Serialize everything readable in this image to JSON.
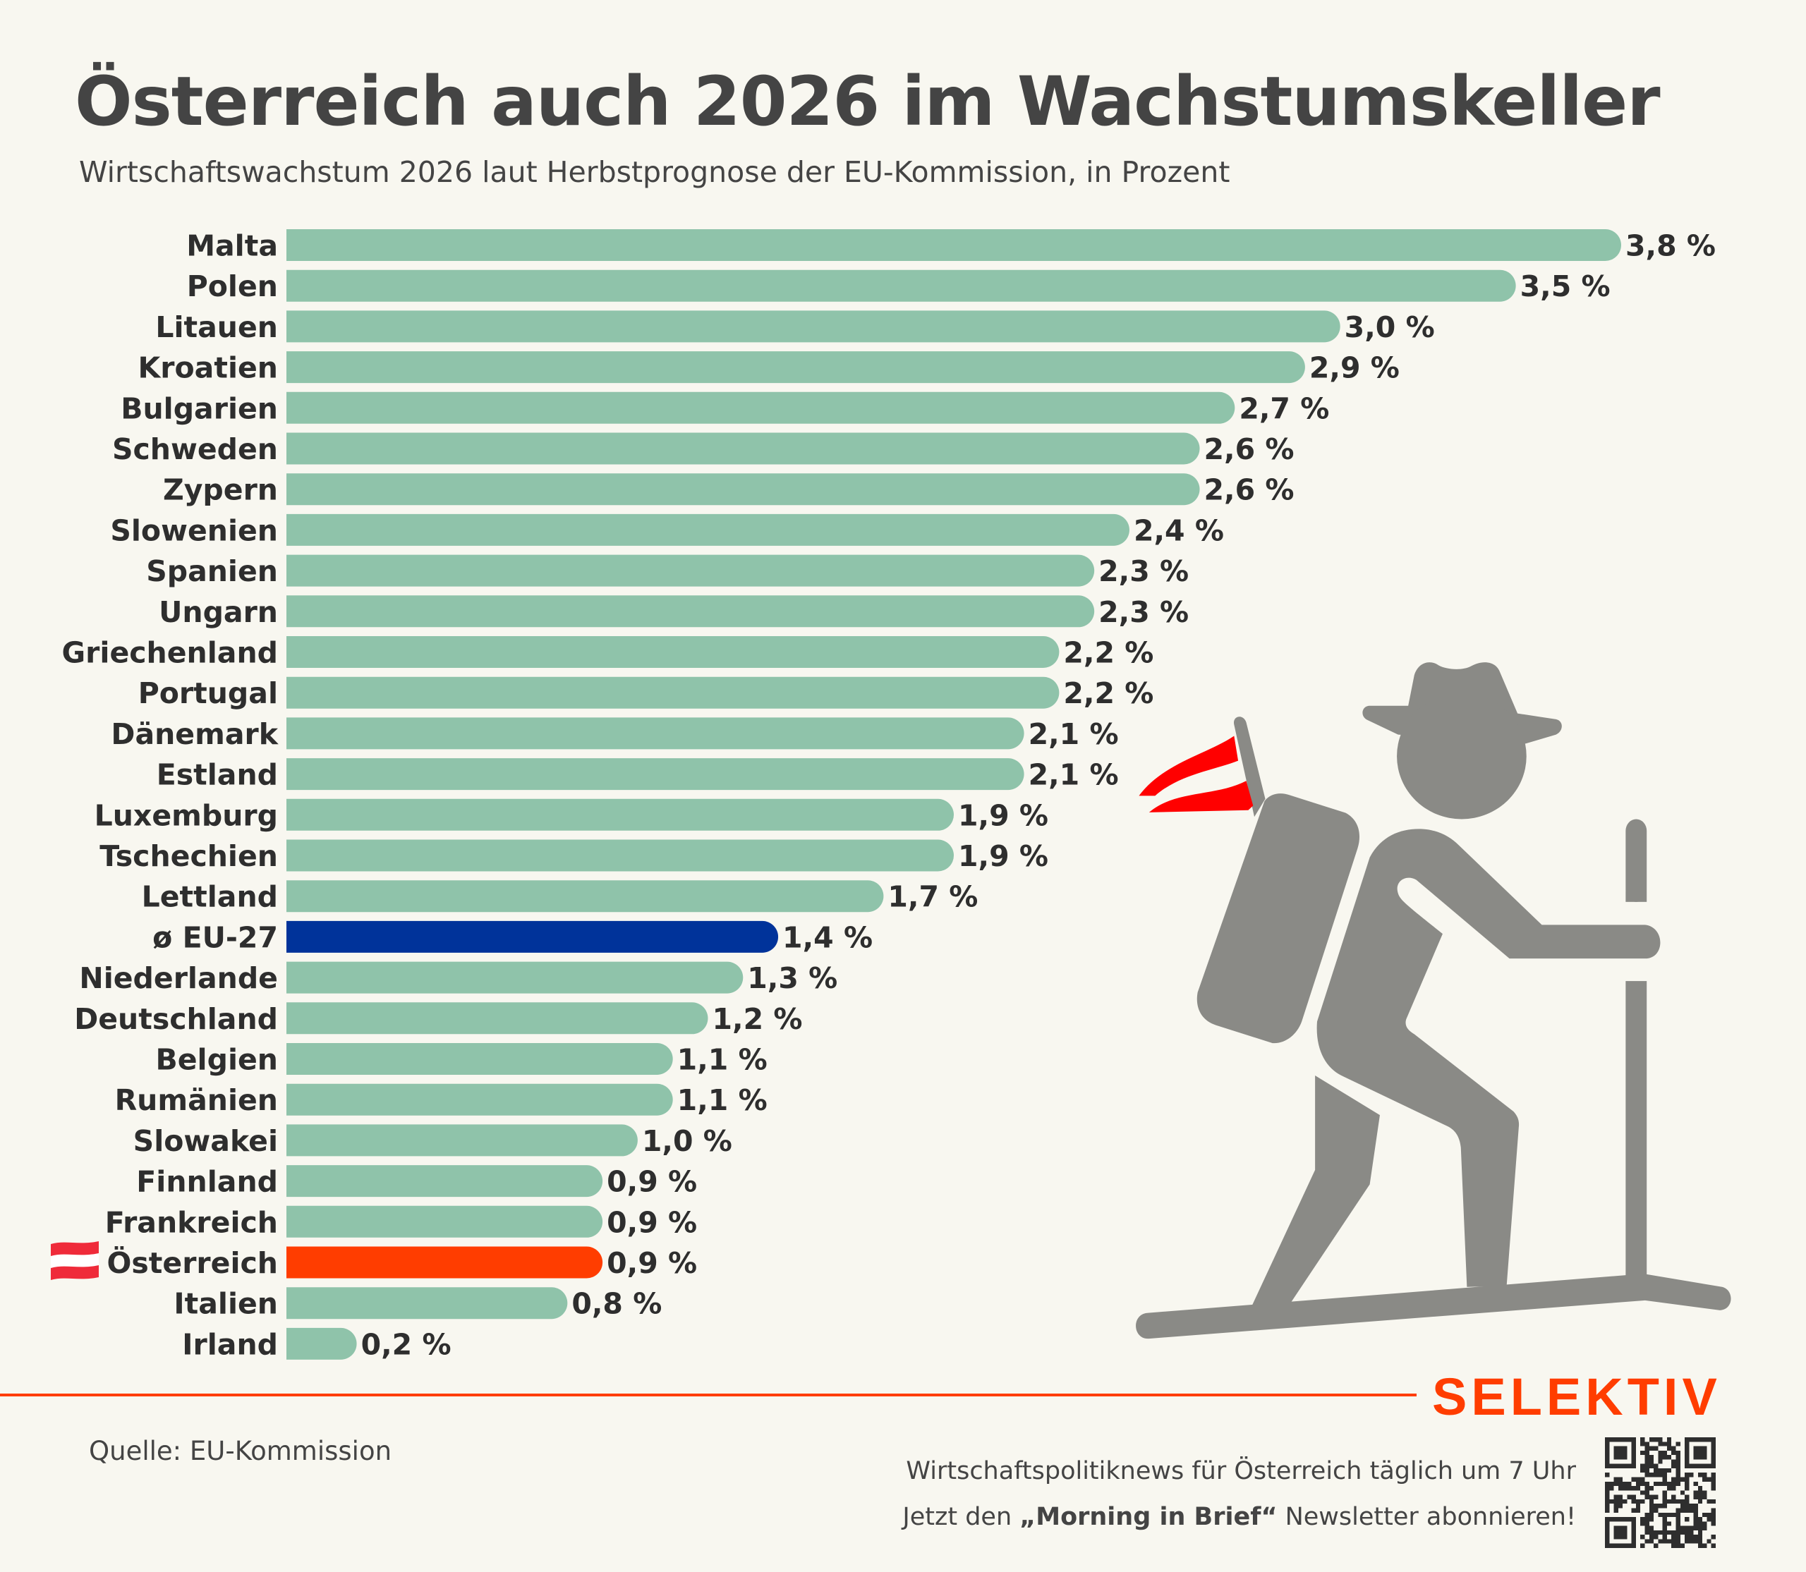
{
  "header": {
    "title": "Österreich auch 2026 im Wachstumskeller",
    "subtitle": "Wirtschaftswachstum 2026 laut Herbstprognose der EU-Kommission, in Prozent"
  },
  "colors": {
    "bar_default": "#8fc3aa",
    "bar_eu_average": "#00339a",
    "bar_austria": "#ff3d00",
    "brand": "#ff3d00",
    "text": "#2e2e2e",
    "illustration_gray": "#8a8a86",
    "flag_red": "#ef2b3a"
  },
  "chart_data": {
    "type": "bar",
    "orientation": "horizontal",
    "title": "Österreich auch 2026 im Wachstumskeller",
    "subtitle": "Wirtschaftswachstum 2026 laut Herbstprognose der EU-Kommission, in Prozent",
    "xlabel": "",
    "ylabel": "",
    "unit": "%",
    "xlim": [
      0,
      3.8
    ],
    "grid": false,
    "legend": "none",
    "categories": [
      "Malta",
      "Polen",
      "Litauen",
      "Kroatien",
      "Bulgarien",
      "Schweden",
      "Zypern",
      "Slowenien",
      "Spanien",
      "Ungarn",
      "Griechenland",
      "Portugal",
      "Dänemark",
      "Estland",
      "Luxemburg",
      "Tschechien",
      "Lettland",
      "ø EU-27",
      "Niederlande",
      "Deutschland",
      "Belgien",
      "Rumänien",
      "Slowakei",
      "Finnland",
      "Frankreich",
      "Österreich",
      "Italien",
      "Irland"
    ],
    "values": [
      3.8,
      3.5,
      3.0,
      2.9,
      2.7,
      2.6,
      2.6,
      2.4,
      2.3,
      2.3,
      2.2,
      2.2,
      2.1,
      2.1,
      1.9,
      1.9,
      1.7,
      1.4,
      1.3,
      1.2,
      1.1,
      1.1,
      1.0,
      0.9,
      0.9,
      0.9,
      0.8,
      0.2
    ],
    "value_labels": [
      "3,8 %",
      "3,5 %",
      "3,0 %",
      "2,9 %",
      "2,7 %",
      "2,6 %",
      "2,6 %",
      "2,4 %",
      "2,3 %",
      "2,3 %",
      "2,2 %",
      "2,2 %",
      "2,1 %",
      "2,1 %",
      "1,9 %",
      "1,9 %",
      "1,7 %",
      "1,4 %",
      "1,3 %",
      "1,2 %",
      "1,1 %",
      "1,1 %",
      "1,0 %",
      "0,9 %",
      "0,9 %",
      "0,9 %",
      "0,8 %",
      "0,2 %"
    ],
    "highlights": {
      "ø EU-27": "eu_average",
      "Österreich": "austria"
    }
  },
  "footer": {
    "source": "Quelle: EU-Kommission",
    "brand": "SELEKTIV",
    "promo_line1": "Wirtschaftspolitiknews für Österreich täglich um 7 Uhr",
    "promo_line2_pre": "Jetzt den ",
    "promo_line2_bold": "„Morning in Brief“",
    "promo_line2_post": " Newsletter abonnieren!"
  },
  "icons": {
    "austria_flag": "austria-flag-icon",
    "hiker": "hiker-illustration",
    "qr": "qr-code"
  }
}
